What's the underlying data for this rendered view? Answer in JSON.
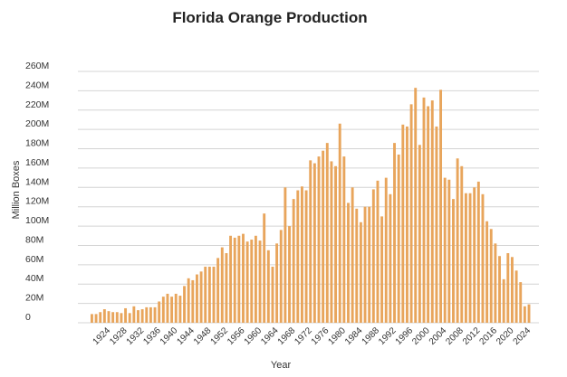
{
  "chart_data": {
    "type": "bar",
    "title": "Florida Orange Production",
    "xlabel": "Year",
    "ylabel": "Million Boxes",
    "ylim": [
      0,
      260
    ],
    "y_ticks": [
      0,
      20,
      40,
      60,
      80,
      100,
      120,
      140,
      160,
      180,
      200,
      220,
      240,
      260
    ],
    "y_tick_labels": [
      "0",
      "20M",
      "40M",
      "60M",
      "80M",
      "100M",
      "120M",
      "140M",
      "160M",
      "180M",
      "200M",
      "220M",
      "240M",
      "260M"
    ],
    "x_tick_labels": [
      "1924",
      "1928",
      "1932",
      "1936",
      "1940",
      "1944",
      "1948",
      "1952",
      "1956",
      "1960",
      "1964",
      "1968",
      "1972",
      "1976",
      "1980",
      "1984",
      "1988",
      "1992",
      "1996",
      "2000",
      "2004",
      "2008",
      "2012",
      "2016",
      "2020",
      "2024"
    ],
    "grid": true,
    "bar_color": "#E8A55C",
    "series": [
      {
        "name": "Million Boxes",
        "years": [
          1920,
          1921,
          1922,
          1923,
          1924,
          1925,
          1926,
          1927,
          1928,
          1929,
          1930,
          1931,
          1932,
          1933,
          1934,
          1935,
          1936,
          1937,
          1938,
          1939,
          1940,
          1941,
          1942,
          1943,
          1944,
          1945,
          1946,
          1947,
          1948,
          1949,
          1950,
          1951,
          1952,
          1953,
          1954,
          1955,
          1956,
          1957,
          1958,
          1959,
          1960,
          1961,
          1962,
          1963,
          1964,
          1965,
          1966,
          1967,
          1968,
          1969,
          1970,
          1971,
          1972,
          1973,
          1974,
          1975,
          1976,
          1977,
          1978,
          1979,
          1980,
          1981,
          1982,
          1983,
          1984,
          1985,
          1986,
          1987,
          1988,
          1989,
          1990,
          1991,
          1992,
          1993,
          1994,
          1995,
          1996,
          1997,
          1998,
          1999,
          2000,
          2001,
          2002,
          2003,
          2004,
          2005,
          2006,
          2007,
          2008,
          2009,
          2010,
          2011,
          2012,
          2013,
          2014,
          2015,
          2016,
          2017,
          2018,
          2019,
          2020,
          2021,
          2022,
          2023,
          2024
        ],
        "values": [
          9,
          9,
          11,
          14,
          12,
          11,
          11,
          10,
          15,
          10,
          17,
          13,
          14,
          16,
          16,
          16,
          22,
          27,
          30,
          27,
          30,
          28,
          38,
          46,
          44,
          50,
          53,
          58,
          58,
          58,
          67,
          78,
          72,
          90,
          88,
          90,
          92,
          84,
          86,
          90,
          85,
          113,
          75,
          58,
          82,
          96,
          140,
          100,
          128,
          137,
          141,
          137,
          168,
          165,
          172,
          178,
          186,
          167,
          162,
          206,
          172,
          124,
          140,
          118,
          104,
          120,
          120,
          138,
          147,
          110,
          150,
          133,
          186,
          174,
          205,
          203,
          226,
          243,
          184,
          233,
          224,
          230,
          203,
          241,
          150,
          148,
          128,
          170,
          162,
          134,
          134,
          140,
          146,
          133,
          105,
          97,
          82,
          69,
          45,
          72,
          68,
          54,
          42,
          17,
          19
        ]
      }
    ]
  }
}
